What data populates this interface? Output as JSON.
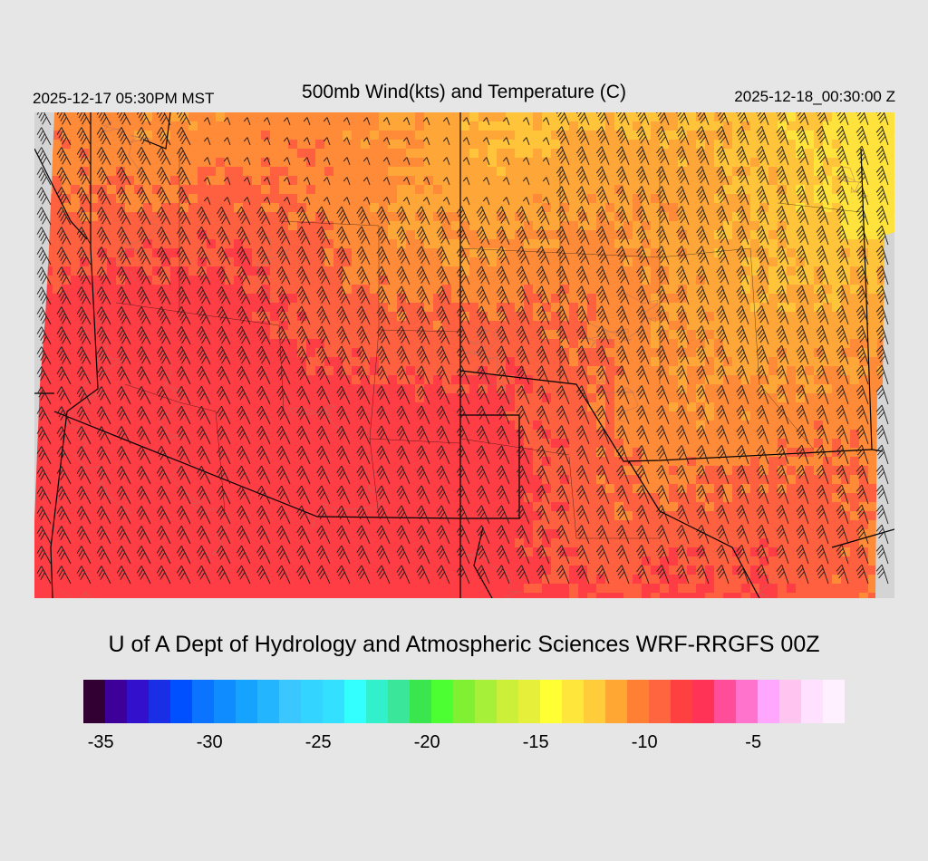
{
  "header": {
    "local_time": "2025-12-17 05:30PM MST",
    "title": "500mb Wind(kts) and Temperature (C)",
    "valid_time": "2025-12-18_00:30:00 Z"
  },
  "credit": "U of A Dept of Hydrology and Atmospheric Sciences WRF-RRGFS 00Z",
  "map": {
    "field": "Temperature (C)",
    "background_color": "#d4d4d4",
    "field_colors": [
      "#ff3d45",
      "#ff6040",
      "#ff8a38",
      "#ffa638",
      "#ffc43a",
      "#ffe23c"
    ],
    "boundary_color": "#000000",
    "barb_color": "#1a1a1a"
  },
  "colorbar": {
    "colors": [
      "#330033",
      "#3d0099",
      "#3311cc",
      "#1a2ee6",
      "#0050ff",
      "#0a73ff",
      "#0f8cff",
      "#16a3ff",
      "#24b5ff",
      "#3ac7ff",
      "#33d4ff",
      "#33e0ff",
      "#33ffff",
      "#33f0cc",
      "#3ae699",
      "#3ae64d",
      "#4cff33",
      "#80f033",
      "#a6f03a",
      "#ccf03a",
      "#e6f03a",
      "#ffff33",
      "#ffe63a",
      "#ffcc3a",
      "#ffa633",
      "#ff8033",
      "#ff6640",
      "#ff4040",
      "#ff3355",
      "#ff4d99",
      "#ff73cc",
      "#ffa6ff",
      "#ffc4f0",
      "#ffe0ff",
      "#fff0ff"
    ],
    "tick_labels": [
      {
        "label": "-35",
        "value": -35
      },
      {
        "label": "-30",
        "value": -30
      },
      {
        "label": "-25",
        "value": -25
      },
      {
        "label": "-20",
        "value": -20
      },
      {
        "label": "-15",
        "value": -15
      },
      {
        "label": "-10",
        "value": -10
      },
      {
        "label": "-5",
        "value": -5
      }
    ]
  }
}
